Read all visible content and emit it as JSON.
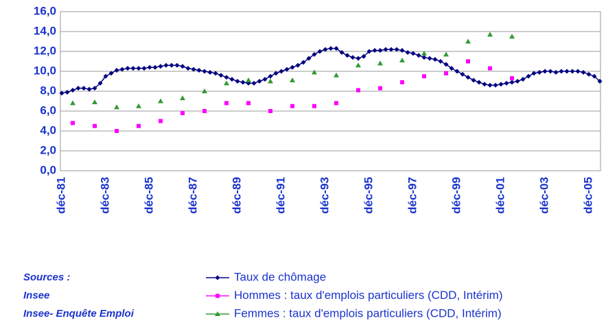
{
  "chart_data": {
    "type": "line",
    "categories": [
      "déc-81",
      null,
      null,
      null,
      null,
      null,
      null,
      null,
      "déc-83",
      null,
      null,
      null,
      null,
      null,
      null,
      null,
      "déc-85",
      null,
      null,
      null,
      null,
      null,
      null,
      null,
      "déc-87",
      null,
      null,
      null,
      null,
      null,
      null,
      null,
      "déc-89",
      null,
      null,
      null,
      null,
      null,
      null,
      null,
      "déc-91",
      null,
      null,
      null,
      null,
      null,
      null,
      null,
      "déc-93",
      null,
      null,
      null,
      null,
      null,
      null,
      null,
      "déc-95",
      null,
      null,
      null,
      null,
      null,
      null,
      null,
      "déc-97",
      null,
      null,
      null,
      null,
      null,
      null,
      null,
      "déc-99",
      null,
      null,
      null,
      null,
      null,
      null,
      null,
      "déc-01",
      null,
      null,
      null,
      null,
      null,
      null,
      null,
      "déc-03",
      null,
      null,
      null,
      null,
      null,
      null,
      null,
      "déc-05",
      null,
      null
    ],
    "series": [
      {
        "name": "Taux de chômage",
        "color": "#000080",
        "marker": "diamond",
        "line": true,
        "values": [
          7.8,
          7.9,
          8.1,
          8.3,
          8.3,
          8.2,
          8.3,
          8.8,
          9.5,
          9.8,
          10.1,
          10.2,
          10.3,
          10.3,
          10.3,
          10.3,
          10.4,
          10.4,
          10.5,
          10.6,
          10.6,
          10.6,
          10.5,
          10.3,
          10.2,
          10.1,
          10.0,
          9.9,
          9.8,
          9.6,
          9.4,
          9.2,
          9.0,
          8.9,
          8.8,
          8.8,
          9.0,
          9.2,
          9.5,
          9.8,
          10.0,
          10.2,
          10.4,
          10.6,
          10.9,
          11.3,
          11.7,
          12.0,
          12.2,
          12.3,
          12.3,
          11.9,
          11.6,
          11.4,
          11.3,
          11.5,
          12.0,
          12.1,
          12.1,
          12.2,
          12.2,
          12.2,
          12.1,
          11.9,
          11.8,
          11.6,
          11.4,
          11.3,
          11.2,
          11.0,
          10.7,
          10.3,
          10.0,
          9.7,
          9.4,
          9.1,
          8.9,
          8.7,
          8.6,
          8.6,
          8.7,
          8.8,
          8.9,
          9.0,
          9.2,
          9.5,
          9.8,
          9.9,
          10.0,
          10.0,
          9.9,
          10.0,
          10.0,
          10.0,
          10.0,
          9.9,
          9.7,
          9.5,
          9.0
        ]
      },
      {
        "name": "Hommes : taux d'emplois particuliers (CDD, Intérim)",
        "color": "#ff00ff",
        "marker": "square",
        "line": false,
        "values": [
          null,
          null,
          4.8,
          null,
          null,
          null,
          4.5,
          null,
          null,
          null,
          4.0,
          null,
          null,
          null,
          4.5,
          null,
          null,
          null,
          5.0,
          null,
          null,
          null,
          5.8,
          null,
          null,
          null,
          6.0,
          null,
          null,
          null,
          6.8,
          null,
          null,
          null,
          6.8,
          null,
          null,
          null,
          6.0,
          null,
          null,
          null,
          6.5,
          null,
          null,
          null,
          6.5,
          null,
          null,
          null,
          6.8,
          null,
          null,
          null,
          8.1,
          null,
          null,
          null,
          8.3,
          null,
          null,
          null,
          8.9,
          null,
          null,
          null,
          9.5,
          null,
          null,
          null,
          9.8,
          null,
          null,
          null,
          11.0,
          null,
          null,
          null,
          10.3,
          null,
          null,
          null,
          9.3,
          null,
          null,
          null,
          null,
          null,
          null,
          null,
          null,
          null,
          null,
          null,
          null,
          null,
          null,
          null,
          null
        ]
      },
      {
        "name": "Femmes : taux d'emplois particuliers  (CDD, Intérim)",
        "color": "#339933",
        "marker": "triangle",
        "line": false,
        "values": [
          null,
          null,
          6.8,
          null,
          null,
          null,
          6.9,
          null,
          null,
          null,
          6.4,
          null,
          null,
          null,
          6.5,
          null,
          null,
          null,
          7.0,
          null,
          null,
          null,
          7.3,
          null,
          null,
          null,
          8.0,
          null,
          null,
          null,
          8.8,
          null,
          null,
          null,
          9.1,
          null,
          null,
          null,
          9.0,
          null,
          null,
          null,
          9.1,
          null,
          null,
          null,
          9.9,
          null,
          null,
          null,
          9.6,
          null,
          null,
          null,
          10.6,
          null,
          null,
          null,
          10.8,
          null,
          null,
          null,
          11.1,
          null,
          null,
          null,
          11.8,
          null,
          null,
          null,
          11.7,
          null,
          null,
          null,
          13.0,
          null,
          null,
          null,
          13.7,
          null,
          null,
          null,
          13.5,
          null,
          null,
          null,
          null,
          null,
          null,
          null,
          null,
          null,
          null,
          null,
          null,
          null,
          null,
          null,
          null
        ]
      }
    ],
    "ylim": [
      0,
      16
    ],
    "yticks": [
      {
        "value": 0,
        "label": "0,0"
      },
      {
        "value": 2,
        "label": "2,0"
      },
      {
        "value": 4,
        "label": "4,0"
      },
      {
        "value": 6,
        "label": "6,0"
      },
      {
        "value": 8,
        "label": "8,0"
      },
      {
        "value": 10,
        "label": "10,0"
      },
      {
        "value": 12,
        "label": "12,0"
      },
      {
        "value": 14,
        "label": "14,0"
      },
      {
        "value": 16,
        "label": "16,0"
      }
    ],
    "grid": true,
    "sources": [
      "Sources :",
      "Insee",
      "Insee- Enquête Emploi"
    ]
  }
}
